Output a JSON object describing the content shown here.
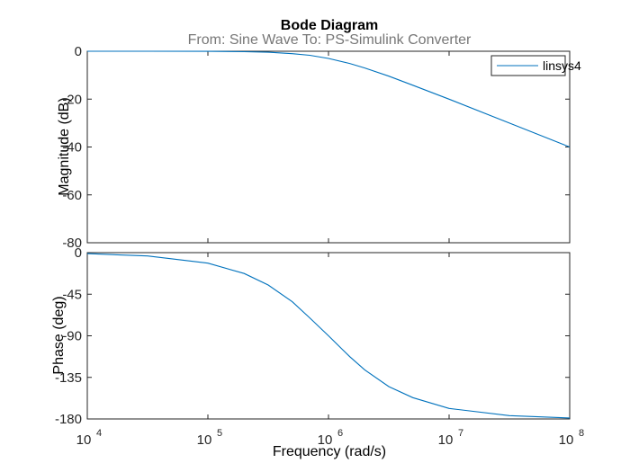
{
  "chart_data": {
    "type": "line",
    "title": "Bode Diagram",
    "subtitle": "From: Sine Wave  To: PS-Simulink Converter",
    "xlabel": "Frequency  (rad/s)",
    "x_scale": "log",
    "xlim": [
      10000,
      100000000
    ],
    "x_ticks": [
      {
        "value": 10000,
        "base": "10",
        "exp": "4"
      },
      {
        "value": 100000,
        "base": "10",
        "exp": "5"
      },
      {
        "value": 1000000,
        "base": "10",
        "exp": "6"
      },
      {
        "value": 10000000,
        "base": "10",
        "exp": "7"
      },
      {
        "value": 100000000,
        "base": "10",
        "exp": "8"
      }
    ],
    "color": "#0072BD",
    "legend": {
      "position": "top-right",
      "entries": [
        "linsys4"
      ]
    },
    "magnitude": {
      "ylabel": "Magnitude (dB)",
      "ylim": [
        -80,
        0
      ],
      "y_ticks": [
        "0",
        "-20",
        "-40",
        "-60",
        "-80"
      ],
      "series": [
        {
          "name": "linsys4",
          "x": [
            10000,
            31620,
            100000,
            200000,
            316200,
            500000,
            700000,
            1000000,
            1500000,
            2000000,
            3162000,
            5000000,
            10000000,
            31620000,
            100000000
          ],
          "y": [
            0,
            0,
            -0.04,
            -0.17,
            -0.4,
            -1.0,
            -1.7,
            -3.0,
            -5.1,
            -7.0,
            -10.4,
            -14.2,
            -20.0,
            -30.0,
            -40.0
          ]
        }
      ]
    },
    "phase": {
      "ylabel": "Phase (deg)",
      "ylim": [
        -180,
        0
      ],
      "y_ticks": [
        "0",
        "-45",
        "-90",
        "-135",
        "-180"
      ],
      "series": [
        {
          "name": "linsys4",
          "x": [
            10000,
            31620,
            100000,
            200000,
            316200,
            500000,
            700000,
            1000000,
            1500000,
            2000000,
            3162000,
            5000000,
            10000000,
            31620000,
            100000000
          ],
          "y": [
            -1.1,
            -3.6,
            -11.4,
            -22.6,
            -35.0,
            -53.1,
            -70.6,
            -90.0,
            -112.6,
            -126.9,
            -145.0,
            -156.9,
            -168.6,
            -176.4,
            -178.9
          ]
        }
      ]
    }
  }
}
